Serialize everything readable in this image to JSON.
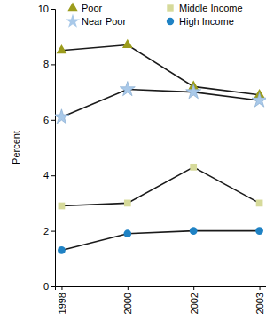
{
  "chart_data": {
    "type": "line",
    "y_label": "Percent",
    "categories": [
      "1998",
      "2000",
      "2002",
      "2003"
    ],
    "series": [
      {
        "name": "Poor",
        "color": "#9c9c1c",
        "marker": "triangle",
        "values": [
          8.5,
          8.7,
          7.2,
          6.9
        ]
      },
      {
        "name": "Middle Income",
        "color": "#d6da9a",
        "marker": "square",
        "values": [
          2.9,
          3.0,
          4.3,
          3.0
        ]
      },
      {
        "name": "Near Poor",
        "color": "#a9c9e9",
        "marker": "star",
        "values": [
          6.1,
          7.1,
          7.0,
          6.7
        ]
      },
      {
        "name": "High Income",
        "color": "#1f82c4",
        "marker": "circle",
        "values": [
          1.3,
          1.9,
          2.0,
          2.0
        ]
      }
    ],
    "ylim": [
      0,
      10
    ],
    "yticks": [
      0,
      2,
      4,
      6,
      8,
      10
    ],
    "legend": "top",
    "grid": false
  }
}
